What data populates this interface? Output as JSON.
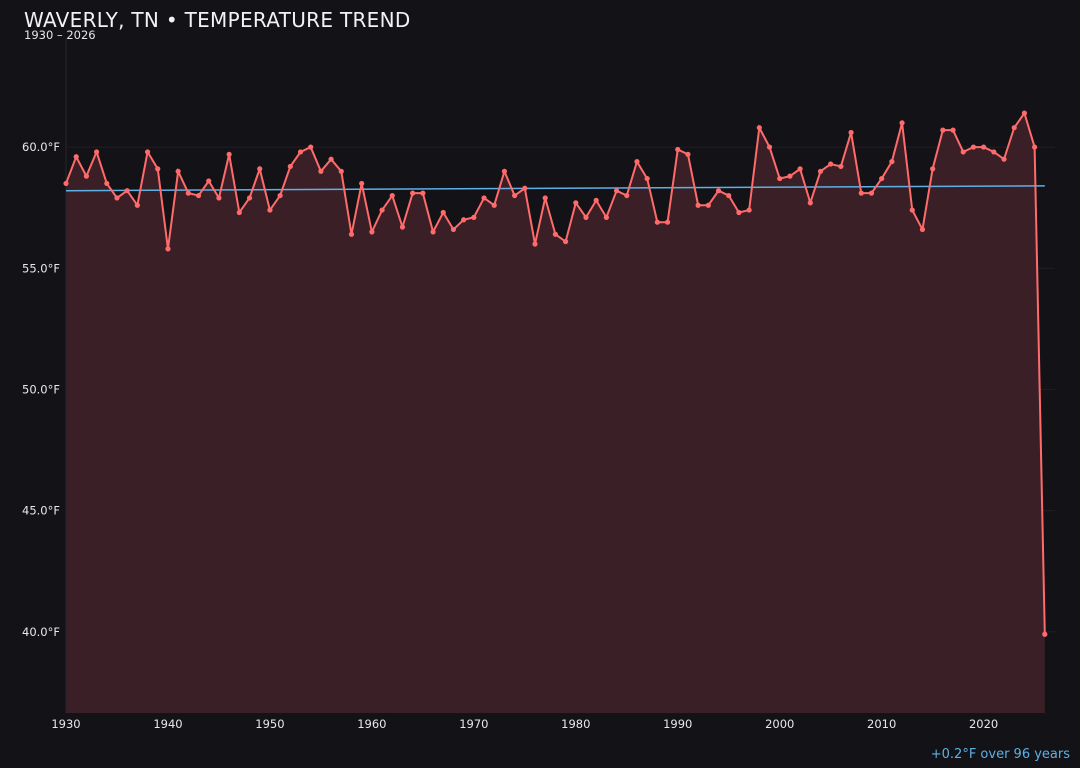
{
  "chart_data": {
    "type": "line",
    "title": "WAVERLY, TN • TEMPERATURE TREND",
    "subtitle": "1930 – 2026",
    "annotation": "+0.2°F over 96 years",
    "x_ticks": [
      "1930",
      "1940",
      "1950",
      "1960",
      "1970",
      "1980",
      "1990",
      "2000",
      "2010",
      "2020"
    ],
    "y_ticks": [
      "40.0°F",
      "45.0°F",
      "50.0°F",
      "55.0°F",
      "60.0°F"
    ],
    "y_tick_values": [
      40,
      45,
      50,
      55,
      60
    ],
    "xlim": [
      1930,
      2027
    ],
    "ylim": [
      36.65,
      64.5
    ],
    "grid": true,
    "colors": {
      "series": "#ff6b6b",
      "fill": "#3a2026",
      "trend": "#5eb0e5",
      "background": "#131217"
    },
    "series": [
      {
        "x": [
          1930,
          1931,
          1932,
          1933,
          1934,
          1935,
          1936,
          1937,
          1938,
          1939,
          1940,
          1941,
          1942,
          1943,
          1944,
          1945,
          1946,
          1947,
          1948,
          1949,
          1950,
          1951,
          1952,
          1953,
          1954,
          1955,
          1956,
          1957,
          1958,
          1959,
          1960,
          1961,
          1962,
          1963,
          1964,
          1965,
          1966,
          1967,
          1968,
          1969,
          1970,
          1971,
          1972,
          1973,
          1974,
          1975,
          1976,
          1977,
          1978,
          1979,
          1980,
          1981,
          1982,
          1983,
          1984,
          1985,
          1986,
          1987,
          1988,
          1989,
          1990,
          1991,
          1992,
          1993,
          1994,
          1995,
          1996,
          1997,
          1998,
          1999,
          2000,
          2001,
          2002,
          2003,
          2004,
          2005,
          2006,
          2007,
          2008,
          2009,
          2010,
          2011,
          2012,
          2013,
          2014,
          2015,
          2016,
          2017,
          2018,
          2019,
          2020,
          2021,
          2022,
          2023,
          2024,
          2025,
          2026
        ],
        "y": [
          58.5,
          59.6,
          58.8,
          59.8,
          58.5,
          57.9,
          58.2,
          57.6,
          59.8,
          59.1,
          55.8,
          59.0,
          58.1,
          58.0,
          58.6,
          57.9,
          59.7,
          57.3,
          57.9,
          59.1,
          57.4,
          58.0,
          59.2,
          59.8,
          60.0,
          59.0,
          59.5,
          59.0,
          56.4,
          58.5,
          56.5,
          57.4,
          58.0,
          56.7,
          58.1,
          58.1,
          56.5,
          57.3,
          56.6,
          57.0,
          57.1,
          57.9,
          57.6,
          59.0,
          58.0,
          58.3,
          56.0,
          57.9,
          56.4,
          56.1,
          57.7,
          57.1,
          57.8,
          57.1,
          58.2,
          58.0,
          59.4,
          58.7,
          56.9,
          56.9,
          59.9,
          59.7,
          57.6,
          57.6,
          58.2,
          58.0,
          57.3,
          57.4,
          60.8,
          60.0,
          58.7,
          58.8,
          59.1,
          57.7,
          59.0,
          59.3,
          59.2,
          60.6,
          58.1,
          58.1,
          58.7,
          59.4,
          61.0,
          57.4,
          56.6,
          59.1,
          60.7,
          60.7,
          59.8,
          60.0,
          60.0,
          59.8,
          59.5,
          60.8,
          61.4,
          60.0,
          39.9
        ]
      }
    ],
    "trend": {
      "x": [
        1930,
        2026
      ],
      "y": [
        58.2,
        58.4
      ]
    }
  }
}
